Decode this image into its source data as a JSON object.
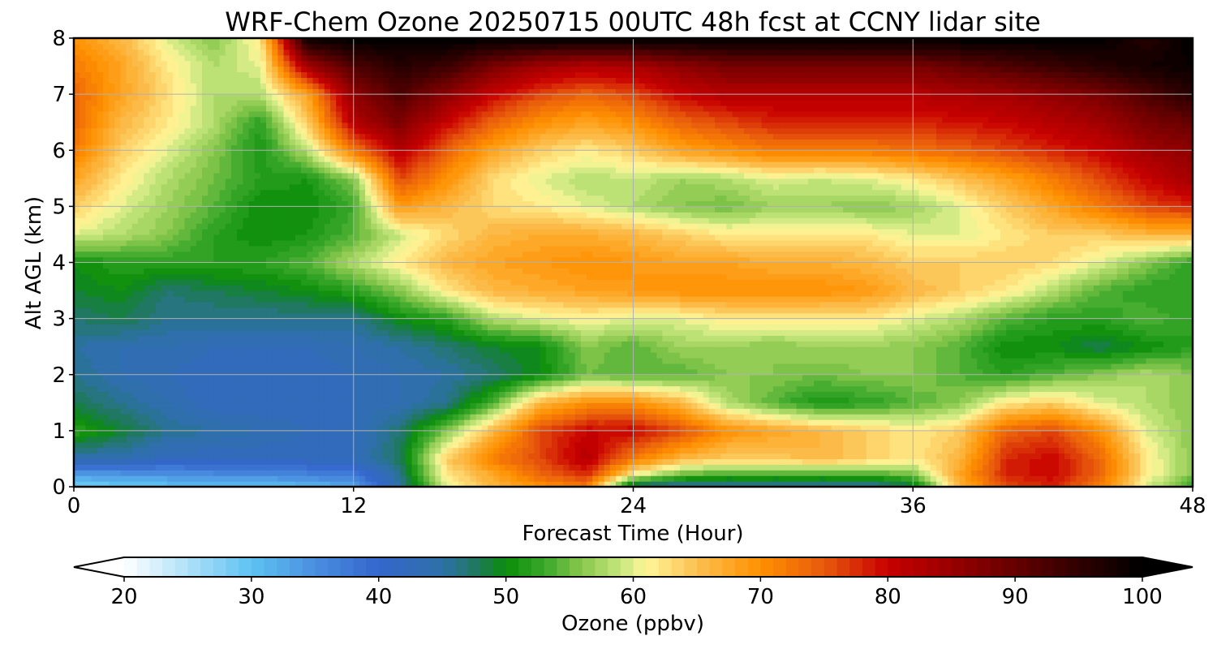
{
  "chart_data": {
    "type": "heatmap",
    "title": "WRF-Chem Ozone  20250715 00UTC 48h fcst at CCNY lidar site",
    "xlabel": "Forecast Time (Hour)",
    "ylabel": "Alt AGL (km)",
    "xlim": [
      0,
      48
    ],
    "ylim": [
      0,
      8
    ],
    "x_ticks": [
      "0",
      "12",
      "24",
      "36",
      "48"
    ],
    "x_tick_values": [
      0,
      12,
      24,
      36,
      48
    ],
    "y_ticks": [
      "0",
      "1",
      "2",
      "3",
      "4",
      "5",
      "6",
      "7",
      "8"
    ],
    "y_tick_values": [
      0,
      1,
      2,
      3,
      4,
      5,
      6,
      7,
      8
    ],
    "grid": true,
    "x_hours": [
      0,
      2,
      4,
      6,
      8,
      10,
      12,
      14,
      16,
      18,
      20,
      22,
      24,
      26,
      28,
      30,
      32,
      34,
      36,
      38,
      40,
      42,
      44,
      46,
      48
    ],
    "y_km": [
      0,
      0.25,
      0.5,
      1,
      1.5,
      2,
      2.5,
      3,
      3.5,
      4,
      4.5,
      5,
      5.5,
      6,
      6.5,
      7,
      7.5,
      8
    ],
    "ozone_ppbv": [
      [
        28,
        29,
        30,
        30,
        30,
        31,
        33,
        45,
        60,
        66,
        70,
        72,
        46,
        44,
        44,
        44,
        44,
        44,
        48,
        66,
        76,
        78,
        72,
        60,
        52
      ],
      [
        34,
        35,
        35,
        36,
        36,
        37,
        38,
        46,
        62,
        68,
        74,
        78,
        62,
        56,
        54,
        54,
        54,
        54,
        56,
        68,
        78,
        80,
        74,
        62,
        56
      ],
      [
        44,
        44,
        42,
        42,
        42,
        42,
        43,
        48,
        64,
        72,
        76,
        82,
        72,
        66,
        64,
        64,
        66,
        64,
        62,
        66,
        78,
        80,
        74,
        62,
        56
      ],
      [
        52,
        49,
        46,
        45,
        44,
        43,
        43,
        47,
        56,
        66,
        76,
        80,
        80,
        76,
        70,
        68,
        66,
        64,
        62,
        64,
        74,
        76,
        70,
        60,
        56
      ],
      [
        48,
        46,
        44,
        42,
        42,
        42,
        43,
        44,
        46,
        54,
        66,
        70,
        70,
        66,
        58,
        54,
        51,
        52,
        54,
        56,
        62,
        64,
        60,
        58,
        56
      ],
      [
        46,
        44,
        43,
        42,
        42,
        42,
        43,
        44,
        45,
        47,
        50,
        55,
        54,
        54,
        56,
        56,
        55,
        56,
        56,
        54,
        52,
        54,
        56,
        58,
        56
      ],
      [
        45,
        44,
        44,
        43,
        43,
        43,
        44,
        45,
        47,
        49,
        50,
        56,
        54,
        57,
        57,
        56,
        57,
        57,
        56,
        54,
        50,
        50,
        48,
        50,
        52
      ],
      [
        47,
        48,
        46,
        46,
        46,
        46,
        46,
        50,
        52,
        58,
        60,
        61,
        60,
        60,
        62,
        62,
        62,
        62,
        60,
        58,
        54,
        52,
        52,
        54,
        52
      ],
      [
        49,
        50,
        47,
        48,
        49,
        50,
        52,
        56,
        62,
        66,
        67,
        68,
        69,
        70,
        70,
        70,
        70,
        69,
        66,
        64,
        62,
        58,
        54,
        52,
        52
      ],
      [
        50,
        52,
        52,
        52,
        52,
        54,
        58,
        62,
        66,
        68,
        69,
        70,
        69,
        68,
        68,
        67,
        67,
        66,
        64,
        64,
        64,
        63,
        60,
        56,
        52
      ],
      [
        60,
        58,
        56,
        52,
        50,
        51,
        54,
        59,
        63,
        66,
        67,
        67,
        66,
        64,
        62,
        62,
        62,
        62,
        60,
        60,
        62,
        64,
        64,
        66,
        66
      ],
      [
        64,
        60,
        57,
        54,
        50,
        50,
        53,
        69,
        66,
        63,
        62,
        60,
        58,
        56,
        55,
        57,
        57,
        56,
        57,
        60,
        64,
        68,
        72,
        76,
        78
      ],
      [
        68,
        62,
        58,
        55,
        52,
        51,
        56,
        76,
        70,
        63,
        60,
        58,
        59,
        57,
        58,
        60,
        59,
        60,
        62,
        65,
        68,
        72,
        76,
        80,
        84
      ],
      [
        72,
        64,
        60,
        56,
        51,
        58,
        72,
        82,
        74,
        68,
        64,
        62,
        64,
        68,
        70,
        72,
        72,
        72,
        73,
        74,
        76,
        78,
        80,
        84,
        86
      ],
      [
        74,
        66,
        62,
        58,
        52,
        64,
        82,
        88,
        80,
        74,
        70,
        68,
        70,
        74,
        76,
        78,
        78,
        78,
        78,
        79,
        80,
        82,
        84,
        88,
        90
      ],
      [
        74,
        68,
        63,
        58,
        58,
        68,
        86,
        92,
        86,
        80,
        76,
        74,
        76,
        80,
        82,
        82,
        82,
        82,
        82,
        83,
        84,
        86,
        88,
        92,
        96
      ],
      [
        72,
        68,
        62,
        58,
        60,
        84,
        92,
        96,
        94,
        88,
        84,
        82,
        83,
        86,
        88,
        88,
        88,
        88,
        88,
        90,
        92,
        94,
        96,
        98,
        99
      ],
      [
        70,
        66,
        60,
        56,
        62,
        99,
        100,
        100,
        100,
        100,
        100,
        100,
        100,
        100,
        100,
        100,
        100,
        100,
        100,
        100,
        100,
        100,
        100,
        96,
        100
      ]
    ],
    "colorbar": {
      "label": "Ozone  (ppbv)",
      "range": [
        20,
        100
      ],
      "ticks": [
        "20",
        "30",
        "40",
        "50",
        "60",
        "70",
        "80",
        "90",
        "100"
      ],
      "tick_values": [
        20,
        30,
        40,
        50,
        60,
        70,
        80,
        90,
        100
      ],
      "extend": "both",
      "orientation": "horizontal",
      "levels": 80,
      "under_color": "#ffffff",
      "over_color": "#000000",
      "color_stops": [
        {
          "v": 20,
          "c": "#ffffff"
        },
        {
          "v": 30,
          "c": "#5ec2f2"
        },
        {
          "v": 35,
          "c": "#4a8fe0"
        },
        {
          "v": 40,
          "c": "#3466cc"
        },
        {
          "v": 45,
          "c": "#2e70a8"
        },
        {
          "v": 48,
          "c": "#1d7a55"
        },
        {
          "v": 50,
          "c": "#0a8c0a"
        },
        {
          "v": 53,
          "c": "#3aa82a"
        },
        {
          "v": 56,
          "c": "#8ac84e"
        },
        {
          "v": 59,
          "c": "#c6e67c"
        },
        {
          "v": 61,
          "c": "#fff79a"
        },
        {
          "v": 65,
          "c": "#fcc050"
        },
        {
          "v": 70,
          "c": "#ff9000"
        },
        {
          "v": 75,
          "c": "#e85a0c"
        },
        {
          "v": 80,
          "c": "#c80000"
        },
        {
          "v": 88,
          "c": "#7a0000"
        },
        {
          "v": 95,
          "c": "#300000"
        },
        {
          "v": 100,
          "c": "#000000"
        }
      ]
    }
  }
}
